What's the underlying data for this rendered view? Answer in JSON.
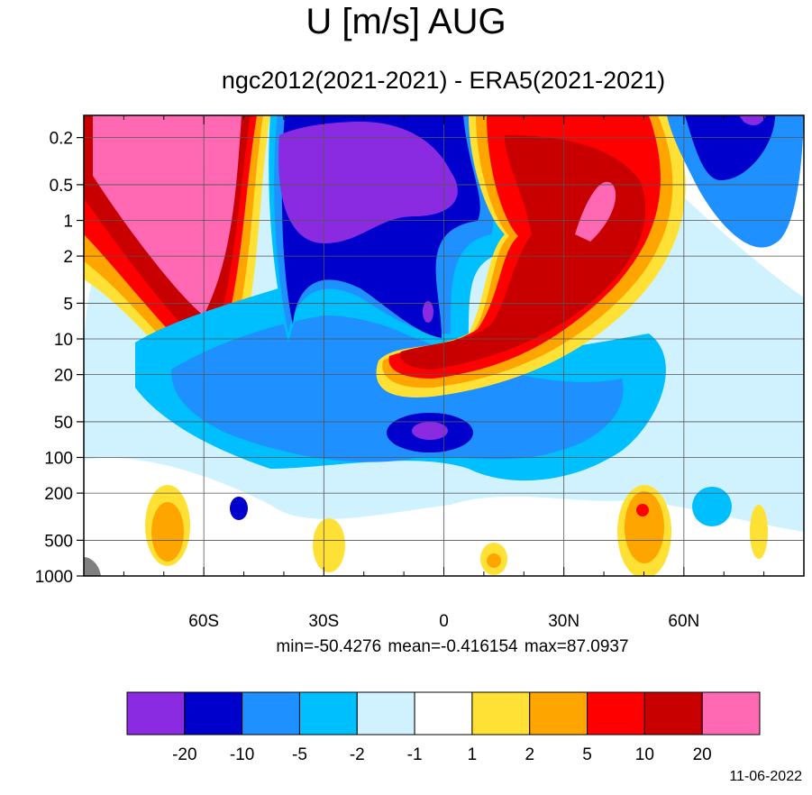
{
  "chart_data": {
    "type": "contour",
    "title": "U [m/s] AUG",
    "subtitle": "ngc2012(2021-2021) - ERA5(2021-2021)",
    "xlabel": "",
    "ylabel": "",
    "x_ticks": [
      {
        "value": -60,
        "label": "60S"
      },
      {
        "value": -30,
        "label": "30S"
      },
      {
        "value": 0,
        "label": "0"
      },
      {
        "value": 30,
        "label": "30N"
      },
      {
        "value": 60,
        "label": "60N"
      }
    ],
    "y_ticks": [
      {
        "value": 0.2,
        "label": "0.2"
      },
      {
        "value": 0.5,
        "label": "0.5"
      },
      {
        "value": 1,
        "label": "1"
      },
      {
        "value": 2,
        "label": "2"
      },
      {
        "value": 5,
        "label": "5"
      },
      {
        "value": 10,
        "label": "10"
      },
      {
        "value": 20,
        "label": "20"
      },
      {
        "value": 50,
        "label": "50"
      },
      {
        "value": 100,
        "label": "100"
      },
      {
        "value": 200,
        "label": "200"
      },
      {
        "value": 500,
        "label": "500"
      },
      {
        "value": 1000,
        "label": "1000"
      }
    ],
    "x_range": [
      -90,
      90
    ],
    "y_range": [
      1000,
      0.13
    ],
    "y_scale": "log",
    "grid": true,
    "stats": "min=-50.4276   mean=-0.416154   max=87.0937",
    "min": -50.4276,
    "mean": -0.416154,
    "max": 87.0937,
    "colorbar": {
      "levels": [
        "-20",
        "-10",
        "-5",
        "-2",
        "-1",
        "1",
        "2",
        "5",
        "10",
        "20"
      ],
      "colors": [
        "#8a2be2",
        "#0000cd",
        "#1e90ff",
        "#00bfff",
        "#d0f2ff",
        "#ffffff",
        "#ffe135",
        "#ffa500",
        "#ff0000",
        "#c80000",
        "#ff69b4"
      ]
    },
    "features": [
      {
        "label": "Strong easterly difference, Southern tropics upper stratosphere",
        "sign": "negative",
        "lat_range": [
          -42,
          -3
        ],
        "p_range": [
          10,
          0.13
        ]
      },
      {
        "label": "Strong westerly difference, Southern high latitudes stratosphere",
        "sign": "positive",
        "lat_range": [
          -90,
          -50
        ],
        "p_range": [
          20,
          0.13
        ]
      },
      {
        "label": "Strong westerly difference, Northern subtropics stratosphere",
        "sign": "positive",
        "lat_range": [
          15,
          55
        ],
        "p_range": [
          30,
          0.13
        ]
      },
      {
        "label": "Easterly core near equator",
        "sign": "negative",
        "lat_range": [
          -15,
          8
        ],
        "p_range": [
          80,
          35
        ]
      },
      {
        "label": "Easterly difference, Northern high latitudes upper stratosphere",
        "sign": "negative",
        "lat_range": [
          60,
          90
        ],
        "p_range": [
          2,
          0.13
        ]
      }
    ]
  },
  "date": "11-06-2022"
}
